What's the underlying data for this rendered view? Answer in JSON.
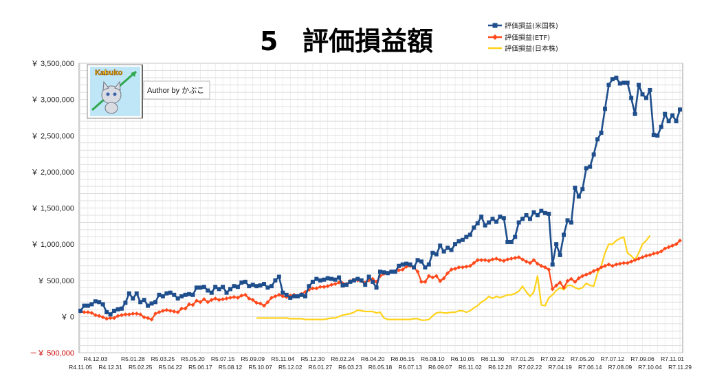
{
  "chart_data": {
    "type": "line",
    "title_number": "5",
    "title": "評価損益額",
    "author_label": "Author by かぶこ",
    "logo_label": "Kabuko",
    "ylim": [
      -500000,
      3500000
    ],
    "y_ticks": [
      -500000,
      0,
      500000,
      1000000,
      1500000,
      2000000,
      2500000,
      3000000,
      3500000
    ],
    "y_tick_labels": [
      "－￥ 500,000",
      "￥ 0",
      "￥ 500,000",
      "￥ 1,000,000",
      "￥ 1,500,000",
      "￥ 2,000,000",
      "￥ 2,500,000",
      "￥ 3,000,000",
      "￥ 3,500,000"
    ],
    "x_ticks_top": [
      {
        "i": 4,
        "label": "R4.12.03"
      },
      {
        "i": 14,
        "label": "R5.01.28"
      },
      {
        "i": 22,
        "label": "R5.03.25"
      },
      {
        "i": 30,
        "label": "R5.05.20"
      },
      {
        "i": 38,
        "label": "R5.07.15"
      },
      {
        "i": 46,
        "label": "R5.09.09"
      },
      {
        "i": 54,
        "label": "R5.11.04"
      },
      {
        "i": 62,
        "label": "R5.12.30"
      },
      {
        "i": 70,
        "label": "R6.02.24"
      },
      {
        "i": 78,
        "label": "R6.04.20"
      },
      {
        "i": 86,
        "label": "R6.06.15"
      },
      {
        "i": 94,
        "label": "R6.08.10"
      },
      {
        "i": 102,
        "label": "R6.10.05"
      },
      {
        "i": 110,
        "label": "R6.11.30"
      },
      {
        "i": 118,
        "label": "R7.01.25"
      },
      {
        "i": 126,
        "label": "R7.03.22"
      },
      {
        "i": 134,
        "label": "R7.05.20"
      },
      {
        "i": 142,
        "label": "R7.07.12"
      },
      {
        "i": 150,
        "label": "R7.09.06"
      },
      {
        "i": 158,
        "label": "R7.11.01"
      }
    ],
    "x_ticks_bottom": [
      {
        "i": 0,
        "label": "R4.11.05"
      },
      {
        "i": 8,
        "label": "R4.12.31"
      },
      {
        "i": 16,
        "label": "R5.02.25"
      },
      {
        "i": 24,
        "label": "R5.04.22"
      },
      {
        "i": 32,
        "label": "R5.06.17"
      },
      {
        "i": 40,
        "label": "R5.08.12"
      },
      {
        "i": 48,
        "label": "R5.10.07"
      },
      {
        "i": 56,
        "label": "R5.12.02"
      },
      {
        "i": 64,
        "label": "R6.01.27"
      },
      {
        "i": 72,
        "label": "R6.03.23"
      },
      {
        "i": 80,
        "label": "R6.05.18"
      },
      {
        "i": 88,
        "label": "R6.07.13"
      },
      {
        "i": 96,
        "label": "R6.09.07"
      },
      {
        "i": 104,
        "label": "R6.11.02"
      },
      {
        "i": 112,
        "label": "R6.12.28"
      },
      {
        "i": 120,
        "label": "R7.02.22"
      },
      {
        "i": 128,
        "label": "R7.04.19"
      },
      {
        "i": 136,
        "label": "R7.06.14"
      },
      {
        "i": 144,
        "label": "R7.08.09"
      },
      {
        "i": 152,
        "label": "R7.10.04"
      },
      {
        "i": 160,
        "label": "R7.11.29"
      }
    ],
    "x_count": 161,
    "grid": true,
    "legend_position": "top-right",
    "series": [
      {
        "name": "評価損益(米国株)",
        "color": "#1f4e8c",
        "marker": "square",
        "start_index": 0,
        "values": [
          80000,
          150000,
          150000,
          170000,
          210000,
          200000,
          170000,
          60000,
          30000,
          80000,
          100000,
          110000,
          190000,
          320000,
          250000,
          320000,
          200000,
          230000,
          150000,
          180000,
          200000,
          300000,
          280000,
          320000,
          330000,
          300000,
          250000,
          280000,
          300000,
          310000,
          300000,
          400000,
          400000,
          410000,
          360000,
          330000,
          410000,
          380000,
          410000,
          330000,
          380000,
          420000,
          410000,
          470000,
          480000,
          420000,
          440000,
          420000,
          430000,
          450000,
          400000,
          420000,
          500000,
          550000,
          330000,
          300000,
          260000,
          280000,
          280000,
          300000,
          280000,
          420000,
          480000,
          520000,
          500000,
          510000,
          530000,
          520000,
          510000,
          540000,
          430000,
          440000,
          480000,
          500000,
          520000,
          500000,
          440000,
          550000,
          480000,
          400000,
          620000,
          610000,
          600000,
          620000,
          620000,
          700000,
          720000,
          730000,
          720000,
          680000,
          780000,
          760000,
          680000,
          720000,
          880000,
          860000,
          980000,
          900000,
          950000,
          920000,
          1000000,
          1040000,
          1060000,
          1100000,
          1130000,
          1230000,
          1290000,
          1380000,
          1260000,
          1300000,
          1350000,
          1310000,
          1380000,
          1360000,
          1030000,
          1030000,
          1100000,
          1300000,
          1350000,
          1400000,
          1350000,
          1440000,
          1400000,
          1460000,
          1430000,
          1420000,
          720000,
          1000000,
          850000,
          1130000,
          1330000,
          1300000,
          1780000,
          1660000,
          1760000,
          2050000,
          2070000,
          2240000,
          2450000,
          2540000,
          2870000,
          3200000,
          3280000,
          3300000,
          3220000,
          3230000,
          3230000,
          3020000,
          2800000,
          3200000,
          3070000,
          3020000,
          3130000,
          2510000,
          2500000,
          2620000,
          2800000,
          2700000,
          2780000,
          2700000,
          2860000
        ]
      },
      {
        "name": "評価損益(ETF)",
        "color": "#ff4a1c",
        "marker": "diamond",
        "start_index": 0,
        "values": [
          70000,
          60000,
          60000,
          50000,
          20000,
          10000,
          -10000,
          -30000,
          -20000,
          -20000,
          10000,
          20000,
          30000,
          30000,
          40000,
          40000,
          30000,
          -10000,
          -20000,
          -40000,
          40000,
          60000,
          80000,
          90000,
          80000,
          70000,
          60000,
          110000,
          110000,
          170000,
          160000,
          220000,
          200000,
          240000,
          200000,
          230000,
          250000,
          230000,
          240000,
          250000,
          260000,
          270000,
          260000,
          290000,
          300000,
          250000,
          230000,
          190000,
          180000,
          150000,
          200000,
          260000,
          280000,
          300000,
          280000,
          270000,
          290000,
          300000,
          290000,
          310000,
          340000,
          370000,
          390000,
          390000,
          410000,
          410000,
          420000,
          440000,
          450000,
          470000,
          460000,
          450000,
          490000,
          510000,
          500000,
          490000,
          470000,
          500000,
          520000,
          480000,
          560000,
          590000,
          600000,
          620000,
          620000,
          640000,
          650000,
          690000,
          700000,
          680000,
          620000,
          480000,
          480000,
          560000,
          540000,
          560000,
          490000,
          530000,
          600000,
          650000,
          660000,
          680000,
          680000,
          690000,
          700000,
          740000,
          780000,
          780000,
          780000,
          770000,
          790000,
          800000,
          780000,
          770000,
          790000,
          800000,
          810000,
          820000,
          790000,
          760000,
          740000,
          780000,
          730000,
          700000,
          680000,
          650000,
          380000,
          430000,
          470000,
          400000,
          490000,
          520000,
          480000,
          530000,
          560000,
          580000,
          600000,
          630000,
          650000,
          680000,
          700000,
          720000,
          700000,
          720000,
          730000,
          740000,
          740000,
          760000,
          780000,
          800000,
          820000,
          840000,
          850000,
          870000,
          880000,
          900000,
          940000,
          960000,
          980000,
          1000000,
          1050000
        ]
      },
      {
        "name": "評価損益(日本株)",
        "color": "#ffd21a",
        "marker": "none",
        "start_index": 47,
        "values": [
          -20000,
          -20000,
          -20000,
          -20000,
          -20000,
          -20000,
          -20000,
          -20000,
          -20000,
          -30000,
          -30000,
          -30000,
          -30000,
          -40000,
          -40000,
          -40000,
          -40000,
          -40000,
          -40000,
          -30000,
          -20000,
          -20000,
          0,
          20000,
          30000,
          40000,
          60000,
          90000,
          80000,
          70000,
          70000,
          70000,
          50000,
          60000,
          -20000,
          -40000,
          -40000,
          -40000,
          -40000,
          -40000,
          -40000,
          -40000,
          -30000,
          -30000,
          -50000,
          -50000,
          -40000,
          10000,
          50000,
          60000,
          50000,
          50000,
          60000,
          60000,
          80000,
          80000,
          60000,
          80000,
          120000,
          150000,
          200000,
          230000,
          280000,
          250000,
          280000,
          260000,
          280000,
          300000,
          300000,
          320000,
          350000,
          420000,
          340000,
          280000,
          340000,
          560000,
          160000,
          150000,
          260000,
          300000,
          360000,
          400000,
          370000,
          430000,
          430000,
          400000,
          380000,
          400000,
          460000,
          430000,
          420000,
          600000,
          700000,
          880000,
          1000000,
          1000000,
          1050000,
          1080000,
          1100000,
          880000,
          840000,
          780000,
          880000,
          1000000,
          1050000,
          1120000
        ]
      }
    ]
  }
}
